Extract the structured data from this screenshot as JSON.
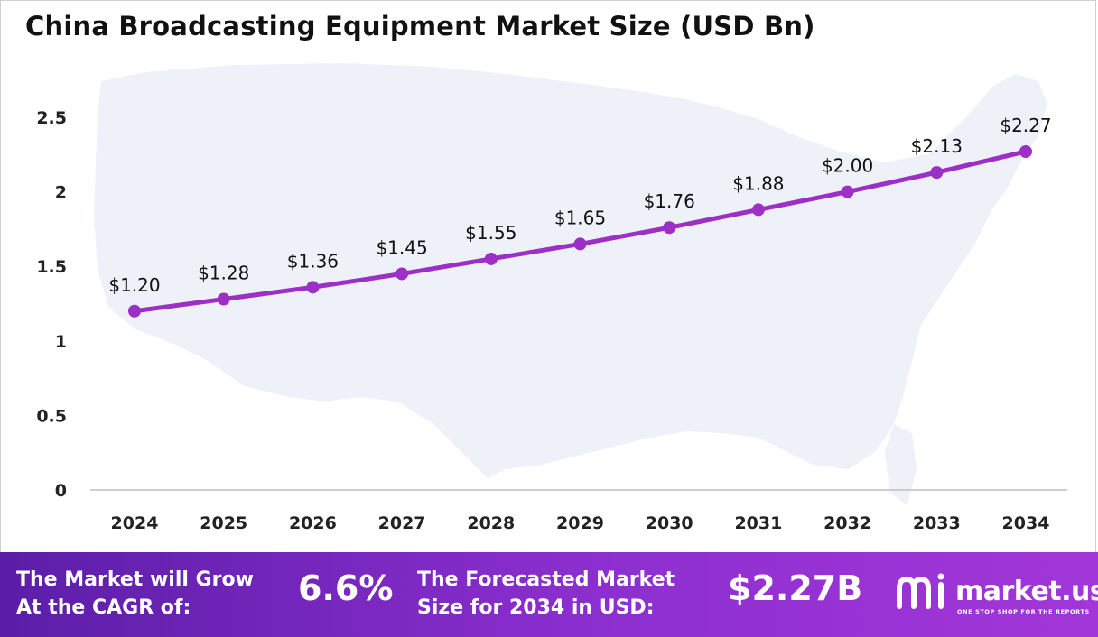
{
  "chart_data": {
    "type": "line",
    "title": "China Broadcasting Equipment Market Size (USD Bn)",
    "categories": [
      "2024",
      "2025",
      "2026",
      "2027",
      "2028",
      "2029",
      "2030",
      "2031",
      "2032",
      "2033",
      "2034"
    ],
    "values": [
      1.2,
      1.28,
      1.36,
      1.45,
      1.55,
      1.65,
      1.76,
      1.88,
      2.0,
      2.13,
      2.27
    ],
    "data_labels": [
      "$1.20",
      "$1.28",
      "$1.36",
      "$1.45",
      "$1.55",
      "$1.65",
      "$1.76",
      "$1.88",
      "$2.00",
      "$2.13",
      "$2.27"
    ],
    "y_ticks": [
      "0",
      "0.5",
      "1",
      "1.5",
      "2",
      "2.5"
    ],
    "y_tick_values": [
      0,
      0.5,
      1,
      1.5,
      2,
      2.5
    ],
    "ylim": [
      0,
      2.5
    ],
    "xlabel": "",
    "ylabel": "",
    "grid": false,
    "line_color": "#9b2fc6",
    "background_map_color": "#eef2f8"
  },
  "footer": {
    "cagr_label_line1": "The Market will Grow",
    "cagr_label_line2": "At the CAGR of:",
    "cagr_value": "6.6%",
    "forecast_label_line1": "The Forecasted Market",
    "forecast_label_line2": "Size for 2034 in USD:",
    "forecast_value": "$2.27B",
    "brand_name": "market.us",
    "brand_tagline": "ONE STOP SHOP FOR THE REPORTS",
    "brand_icon": "market-us-logo-icon"
  }
}
